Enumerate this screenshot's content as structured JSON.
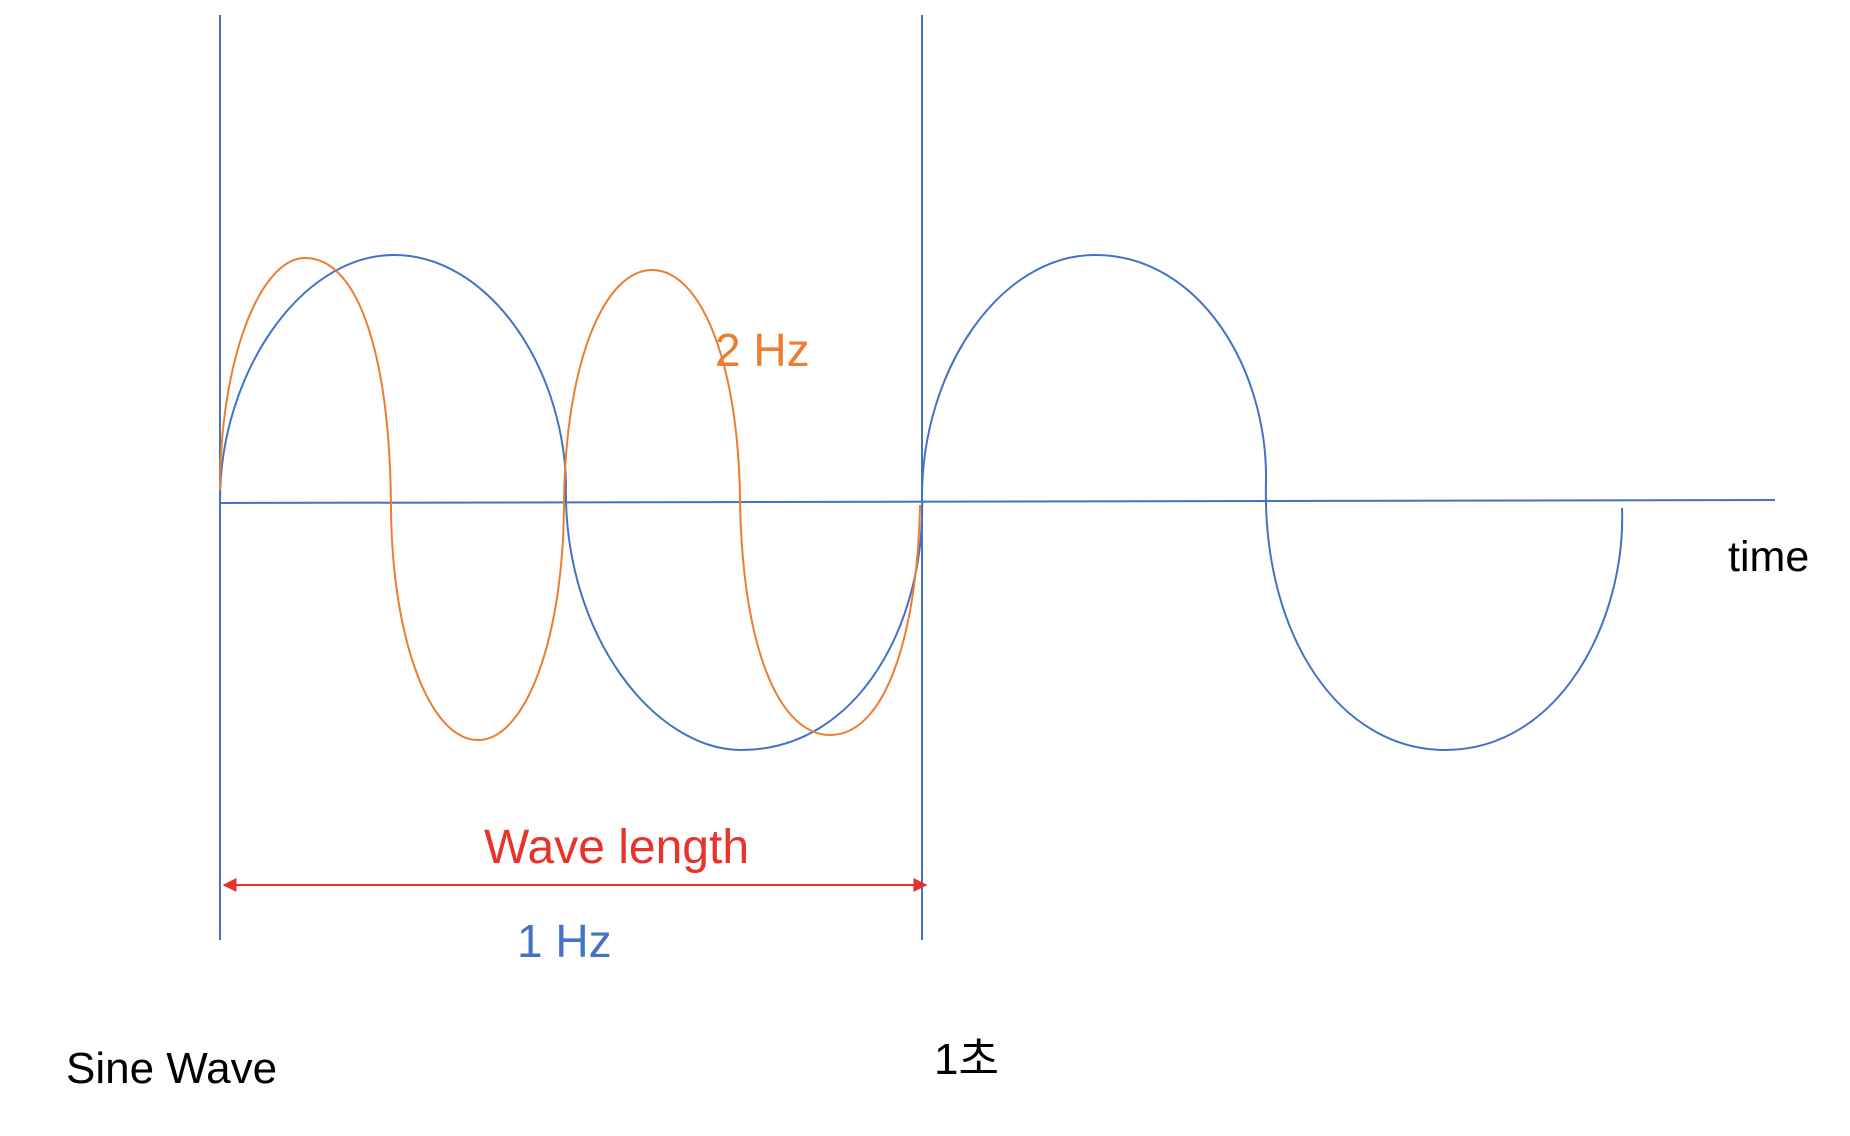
{
  "labels": {
    "time": "time",
    "two_hz": "2 Hz",
    "wave_length": "Wave length",
    "one_hz": "1 Hz",
    "sine_wave": "Sine Wave",
    "one_second": "1초"
  },
  "colors": {
    "one_hz_wave": "#4472C4",
    "two_hz_wave": "#ED7D31",
    "wave_length_arrow": "#E8322B",
    "text": "#000000"
  }
}
